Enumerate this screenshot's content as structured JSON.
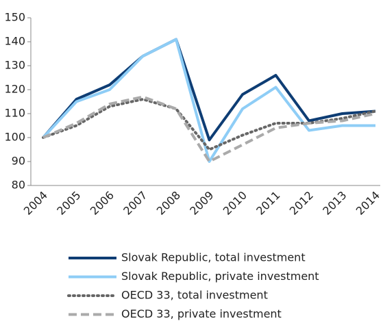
{
  "chart_data": {
    "type": "line",
    "categories": [
      "2004",
      "2005",
      "2006",
      "2007",
      "2008",
      "2009",
      "2010",
      "2011",
      "2012",
      "2013",
      "2014"
    ],
    "series": [
      {
        "name": "Slovak Republic, total investment",
        "color": "#0e3d74",
        "style": "solid",
        "values": [
          100,
          116,
          122,
          134,
          141,
          99,
          118,
          126,
          107,
          110,
          111
        ]
      },
      {
        "name": "Slovak Republic, private investment",
        "color": "#8ecdf6",
        "style": "solid",
        "values": [
          100,
          115,
          120,
          134,
          141,
          90,
          112,
          121,
          103,
          105,
          105
        ]
      },
      {
        "name": "OECD 33, total investment",
        "color": "#666666",
        "style": "dotted",
        "values": [
          100,
          105,
          113,
          116,
          112,
          95,
          101,
          106,
          106,
          108,
          111
        ]
      },
      {
        "name": "OECD 33, private investment",
        "color": "#aaaaaa",
        "style": "dashed",
        "values": [
          100,
          106,
          114,
          117,
          112,
          90,
          97,
          104,
          106,
          107,
          110
        ]
      }
    ],
    "ylim": [
      80,
      150
    ],
    "yticks": [
      80,
      90,
      100,
      110,
      120,
      130,
      140,
      150
    ],
    "grid": false,
    "legend": "bottom"
  }
}
